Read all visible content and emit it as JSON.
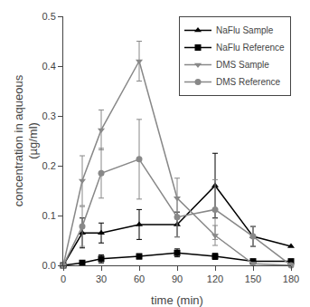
{
  "chart_data": {
    "type": "line",
    "xlabel": "time (min)",
    "ylabel": "concentration in aqueous\n(µg/ml)",
    "x": [
      0,
      15,
      30,
      60,
      90,
      120,
      150,
      180
    ],
    "series": [
      {
        "name": "NaFlu Sample",
        "color": "#000000",
        "marker": "triangle-up",
        "line_style": "solid",
        "values": [
          0.0,
          0.065,
          0.065,
          0.082,
          0.082,
          0.16,
          0.058,
          0.038
        ],
        "yerr": [
          0.0,
          0.03,
          0.02,
          0.03,
          0.025,
          0.065,
          0.02,
          0.0
        ]
      },
      {
        "name": "NaFlu Reference",
        "color": "#000000",
        "marker": "square",
        "line_style": "solid",
        "values": [
          0.0,
          0.005,
          0.013,
          0.018,
          0.025,
          0.018,
          0.008,
          0.008
        ],
        "yerr": [
          0.0,
          0.003,
          0.008,
          0.005,
          0.008,
          0.006,
          0.003,
          0.003
        ]
      },
      {
        "name": "DMS Sample",
        "color": "#888888",
        "marker": "triangle-down",
        "line_style": "solid",
        "values": [
          0.0,
          0.17,
          0.272,
          0.41,
          0.135,
          0.06,
          0.003,
          0.0
        ],
        "yerr": [
          0.0,
          0.05,
          0.04,
          0.04,
          0.04,
          0.02,
          0.003,
          0.0
        ]
      },
      {
        "name": "DMS Reference",
        "color": "#888888",
        "marker": "circle",
        "line_style": "solid",
        "values": [
          0.0,
          0.078,
          0.185,
          0.213,
          0.097,
          0.112,
          0.058,
          0.0
        ],
        "yerr": [
          0.0,
          0.04,
          0.05,
          0.08,
          0.04,
          0.06,
          0.02,
          0.0
        ]
      }
    ],
    "xlim": [
      0,
      180
    ],
    "ylim": [
      0,
      0.5
    ],
    "xticks": [
      0,
      30,
      60,
      90,
      120,
      150,
      180
    ],
    "yticks": [
      {
        "value": 0,
        "label": "0.0"
      },
      0.1,
      0.2,
      0.3,
      0.4,
      0.5
    ],
    "grid": false,
    "legend": "upper right"
  }
}
